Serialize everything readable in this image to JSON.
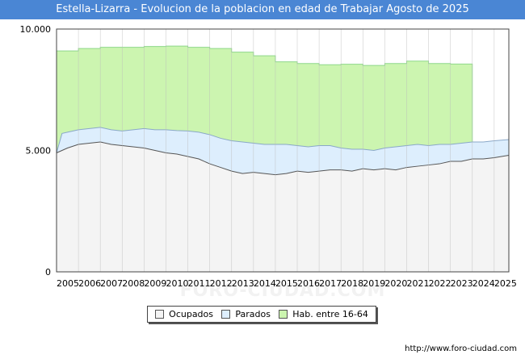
{
  "title": "Estella-Lizarra - Evolucion de la poblacion en edad de Trabajar Agosto de 2025",
  "source_url": "http://www.foro-ciudad.com",
  "watermark": "FORO-CIUDAD.COM",
  "colors": {
    "title_bg": "#4a86d4",
    "hab": "#ccf5b0",
    "hab_line": "#8ed88a",
    "parados": "#ddeefd",
    "parados_line": "#8aa8c8",
    "ocupados": "#f4f4f4",
    "ocupados_line": "#555555"
  },
  "legend": {
    "items": [
      {
        "label": "Ocupados",
        "color": "#f4f4f4"
      },
      {
        "label": "Parados",
        "color": "#ddeefd"
      },
      {
        "label": "Hab. entre 16-64",
        "color": "#ccf5b0"
      }
    ]
  },
  "chart_data": {
    "type": "area",
    "title": "Estella-Lizarra - Evolucion de la poblacion en edad de Trabajar Agosto de 2025",
    "xlabel": "",
    "ylabel": "",
    "xlim": [
      2005,
      2025.67
    ],
    "ylim": [
      0,
      10000
    ],
    "y_ticks": [
      0,
      5000,
      10000
    ],
    "y_tick_labels": [
      "0",
      "5.000",
      "10.000"
    ],
    "x_ticks": [
      2005,
      2006,
      2007,
      2008,
      2009,
      2010,
      2011,
      2012,
      2013,
      2014,
      2015,
      2016,
      2017,
      2018,
      2019,
      2020,
      2021,
      2022,
      2023,
      2024,
      2025
    ],
    "x_tick_labels": [
      "2005",
      "2006",
      "2007",
      "2008",
      "2009",
      "2010",
      "2011",
      "2012",
      "2013",
      "2014",
      "2015",
      "2016",
      "2017",
      "2018",
      "2019",
      "2020",
      "2021",
      "2022",
      "2023",
      "2024",
      "2025"
    ],
    "grid": true,
    "series": [
      {
        "name": "Hab. entre 16-64",
        "x": [
          2005,
          2006,
          2007,
          2008,
          2009,
          2010,
          2011,
          2012,
          2013,
          2014,
          2015,
          2016,
          2017,
          2018,
          2019,
          2020,
          2021,
          2022,
          2023,
          2024
        ],
        "values": [
          9100,
          9200,
          9250,
          9250,
          9280,
          9300,
          9250,
          9200,
          9050,
          8900,
          8650,
          8580,
          8530,
          8550,
          8500,
          8580,
          8680,
          8580,
          8560,
          5300
        ]
      },
      {
        "name": "Parados",
        "x": [
          2005,
          2005.25,
          2005.5,
          2006,
          2006.5,
          2007,
          2007.5,
          2008,
          2008.5,
          2009,
          2009.5,
          2010,
          2010.5,
          2011,
          2011.5,
          2012,
          2012.5,
          2013,
          2013.5,
          2014,
          2014.5,
          2015,
          2015.5,
          2016,
          2016.5,
          2017,
          2017.5,
          2018,
          2018.5,
          2019,
          2019.5,
          2020,
          2020.5,
          2021,
          2021.5,
          2022,
          2022.5,
          2023,
          2023.5,
          2024,
          2024.5,
          2025,
          2025.67
        ],
        "values": [
          4900,
          5700,
          5750,
          5850,
          5900,
          5950,
          5850,
          5800,
          5850,
          5900,
          5850,
          5850,
          5820,
          5800,
          5750,
          5650,
          5500,
          5400,
          5350,
          5300,
          5250,
          5250,
          5250,
          5200,
          5150,
          5200,
          5200,
          5100,
          5050,
          5050,
          5000,
          5100,
          5150,
          5200,
          5250,
          5200,
          5250,
          5250,
          5300,
          5350,
          5350,
          5400,
          5450
        ]
      },
      {
        "name": "Ocupados",
        "x": [
          2005,
          2005.25,
          2005.5,
          2006,
          2006.5,
          2007,
          2007.5,
          2008,
          2008.5,
          2009,
          2009.5,
          2010,
          2010.5,
          2011,
          2011.5,
          2012,
          2012.5,
          2013,
          2013.5,
          2014,
          2014.5,
          2015,
          2015.5,
          2016,
          2016.5,
          2017,
          2017.5,
          2018,
          2018.5,
          2019,
          2019.5,
          2020,
          2020.5,
          2021,
          2021.5,
          2022,
          2022.5,
          2023,
          2023.5,
          2024,
          2024.5,
          2025,
          2025.67
        ],
        "values": [
          4900,
          5000,
          5100,
          5250,
          5300,
          5350,
          5250,
          5200,
          5150,
          5100,
          5000,
          4900,
          4850,
          4750,
          4650,
          4450,
          4300,
          4150,
          4050,
          4100,
          4050,
          4000,
          4050,
          4150,
          4100,
          4150,
          4200,
          4200,
          4150,
          4250,
          4200,
          4250,
          4200,
          4300,
          4350,
          4400,
          4450,
          4550,
          4550,
          4650,
          4650,
          4700,
          4800
        ]
      }
    ]
  }
}
